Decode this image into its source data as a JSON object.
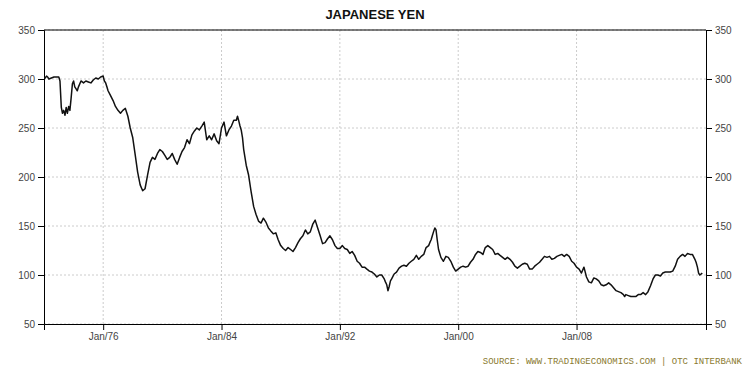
{
  "chart_data": {
    "type": "line",
    "title": "JAPANESE YEN",
    "annotations": [
      "SOURCE:  WWW.TRADINGECONOMICS.COM  |  OTC  INTERBANK"
    ],
    "color": "#111111",
    "grid": true,
    "xlim": [
      1972.0,
      2016.75
    ],
    "xticks": [
      {
        "value": 1976,
        "label": "Jan/76"
      },
      {
        "value": 1984,
        "label": "Jan/84"
      },
      {
        "value": 1992,
        "label": "Jan/92"
      },
      {
        "value": 2000,
        "label": "Jan/00"
      },
      {
        "value": 2008,
        "label": "Jan/08"
      }
    ],
    "ylim": [
      50,
      350
    ],
    "yticks": [
      50,
      100,
      150,
      200,
      250,
      300,
      350
    ],
    "y2lim": [
      50,
      350
    ],
    "y2ticks": [
      50,
      100,
      150,
      200,
      250,
      300,
      350
    ],
    "x": [
      1972.0,
      1972.08,
      1972.17,
      1972.25,
      1972.33,
      1972.5,
      1972.67,
      1972.83,
      1973.0,
      1973.08,
      1973.17,
      1973.25,
      1973.33,
      1973.42,
      1973.5,
      1973.58,
      1973.67,
      1973.75,
      1973.83,
      1973.92,
      1974.0,
      1974.08,
      1974.17,
      1974.25,
      1974.33,
      1974.5,
      1974.67,
      1974.83,
      1975.0,
      1975.17,
      1975.33,
      1975.5,
      1975.67,
      1975.83,
      1976.0,
      1976.08,
      1976.17,
      1976.25,
      1976.33,
      1976.5,
      1976.67,
      1976.83,
      1977.0,
      1977.17,
      1977.33,
      1977.5,
      1977.67,
      1977.83,
      1978.0,
      1978.17,
      1978.33,
      1978.5,
      1978.67,
      1978.83,
      1979.0,
      1979.17,
      1979.33,
      1979.5,
      1979.67,
      1979.83,
      1980.0,
      1980.17,
      1980.33,
      1980.5,
      1980.67,
      1980.83,
      1981.0,
      1981.17,
      1981.33,
      1981.5,
      1981.67,
      1981.83,
      1982.0,
      1982.17,
      1982.33,
      1982.5,
      1982.67,
      1982.83,
      1983.0,
      1983.17,
      1983.33,
      1983.5,
      1983.67,
      1983.83,
      1984.0,
      1984.17,
      1984.33,
      1984.5,
      1984.67,
      1984.83,
      1985.0,
      1985.08,
      1985.17,
      1985.25,
      1985.33,
      1985.42,
      1985.5,
      1985.67,
      1985.83,
      1986.0,
      1986.17,
      1986.33,
      1986.5,
      1986.67,
      1986.83,
      1987.0,
      1987.17,
      1987.33,
      1987.5,
      1987.67,
      1987.83,
      1988.0,
      1988.17,
      1988.33,
      1988.5,
      1988.67,
      1988.83,
      1989.0,
      1989.17,
      1989.33,
      1989.5,
      1989.67,
      1989.83,
      1990.0,
      1990.17,
      1990.33,
      1990.5,
      1990.67,
      1990.83,
      1991.0,
      1991.17,
      1991.33,
      1991.5,
      1991.67,
      1991.83,
      1992.0,
      1992.17,
      1992.33,
      1992.5,
      1992.67,
      1992.83,
      1993.0,
      1993.17,
      1993.33,
      1993.5,
      1993.67,
      1993.83,
      1994.0,
      1994.17,
      1994.33,
      1994.5,
      1994.67,
      1994.83,
      1995.0,
      1995.08,
      1995.17,
      1995.25,
      1995.33,
      1995.42,
      1995.5,
      1995.67,
      1995.83,
      1996.0,
      1996.17,
      1996.33,
      1996.5,
      1996.67,
      1996.83,
      1997.0,
      1997.17,
      1997.33,
      1997.5,
      1997.67,
      1997.83,
      1998.0,
      1998.08,
      1998.17,
      1998.25,
      1998.33,
      1998.42,
      1998.5,
      1998.58,
      1998.67,
      1998.83,
      1999.0,
      1999.17,
      1999.33,
      1999.5,
      1999.67,
      1999.83,
      2000.0,
      2000.17,
      2000.33,
      2000.5,
      2000.67,
      2000.83,
      2001.0,
      2001.17,
      2001.33,
      2001.5,
      2001.67,
      2001.83,
      2002.0,
      2002.17,
      2002.33,
      2002.5,
      2002.67,
      2002.83,
      2003.0,
      2003.17,
      2003.33,
      2003.5,
      2003.67,
      2003.83,
      2004.0,
      2004.17,
      2004.33,
      2004.5,
      2004.67,
      2004.83,
      2005.0,
      2005.17,
      2005.33,
      2005.5,
      2005.67,
      2005.83,
      2006.0,
      2006.17,
      2006.33,
      2006.5,
      2006.67,
      2006.83,
      2007.0,
      2007.17,
      2007.33,
      2007.5,
      2007.67,
      2007.83,
      2008.0,
      2008.17,
      2008.33,
      2008.5,
      2008.67,
      2008.83,
      2009.0,
      2009.17,
      2009.33,
      2009.5,
      2009.67,
      2009.83,
      2010.0,
      2010.17,
      2010.33,
      2010.5,
      2010.67,
      2010.83,
      2011.0,
      2011.17,
      2011.25,
      2011.33,
      2011.5,
      2011.67,
      2011.83,
      2012.0,
      2012.17,
      2012.33,
      2012.5,
      2012.67,
      2012.83,
      2013.0,
      2013.17,
      2013.33,
      2013.5,
      2013.67,
      2013.83,
      2014.0,
      2014.17,
      2014.33,
      2014.5,
      2014.67,
      2014.83,
      2015.0,
      2015.17,
      2015.33,
      2015.5,
      2015.67,
      2015.83,
      2016.0,
      2016.08,
      2016.17,
      2016.25,
      2016.33,
      2016.5
    ],
    "values": [
      302,
      301,
      303,
      302,
      300,
      301,
      302,
      302,
      302,
      298,
      271,
      265,
      268,
      263,
      271,
      265,
      272,
      268,
      280,
      295,
      298,
      292,
      290,
      288,
      292,
      298,
      296,
      298,
      297,
      296,
      299,
      301,
      300,
      302,
      303,
      298,
      296,
      292,
      288,
      283,
      278,
      272,
      268,
      265,
      268,
      270,
      262,
      250,
      240,
      222,
      205,
      192,
      186,
      188,
      202,
      215,
      220,
      218,
      224,
      228,
      226,
      222,
      218,
      220,
      224,
      218,
      213,
      220,
      226,
      230,
      238,
      234,
      243,
      247,
      250,
      248,
      252,
      256,
      238,
      242,
      238,
      244,
      237,
      234,
      250,
      256,
      242,
      248,
      252,
      258,
      258,
      262,
      257,
      252,
      248,
      240,
      228,
      212,
      202,
      185,
      170,
      162,
      155,
      153,
      158,
      154,
      148,
      145,
      142,
      143,
      136,
      130,
      127,
      125,
      128,
      126,
      124,
      128,
      133,
      137,
      140,
      146,
      142,
      144,
      152,
      156,
      148,
      140,
      132,
      133,
      137,
      140,
      136,
      130,
      127,
      127,
      130,
      127,
      126,
      122,
      124,
      120,
      114,
      112,
      108,
      108,
      106,
      104,
      103,
      101,
      98,
      100,
      100,
      96,
      93,
      90,
      84,
      88,
      94,
      96,
      101,
      103,
      107,
      109,
      110,
      109,
      112,
      114,
      116,
      120,
      116,
      119,
      121,
      128,
      130,
      133,
      136,
      140,
      144,
      148,
      146,
      136,
      126,
      118,
      114,
      119,
      118,
      114,
      108,
      104,
      106,
      108,
      109,
      108,
      109,
      113,
      116,
      121,
      124,
      123,
      121,
      128,
      130,
      128,
      126,
      121,
      122,
      120,
      118,
      116,
      118,
      116,
      113,
      109,
      107,
      109,
      111,
      112,
      111,
      106,
      106,
      109,
      111,
      113,
      116,
      119,
      118,
      119,
      116,
      117,
      119,
      120,
      121,
      119,
      121,
      119,
      114,
      112,
      108,
      106,
      102,
      108,
      98,
      93,
      92,
      97,
      96,
      94,
      90,
      89,
      90,
      92,
      90,
      87,
      84,
      83,
      82,
      80,
      78,
      80,
      79,
      78,
      78,
      78,
      80,
      80,
      82,
      80,
      83,
      89,
      96,
      100,
      100,
      99,
      102,
      103,
      103,
      103,
      104,
      109,
      116,
      119,
      121,
      119,
      122,
      121,
      121,
      116,
      113,
      108,
      102,
      100,
      102
    ]
  }
}
